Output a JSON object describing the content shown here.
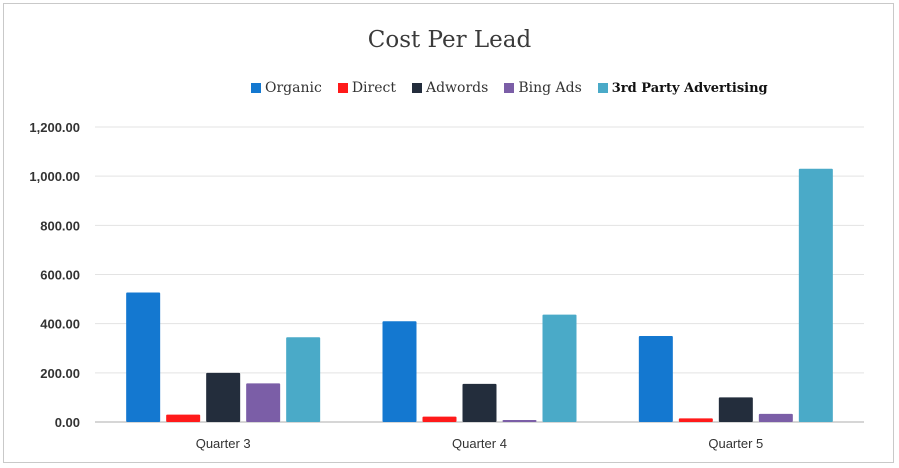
{
  "chart_data": {
    "type": "bar",
    "title": "Cost Per Lead",
    "categories": [
      "Quarter 3",
      "Quarter 4",
      "Quarter 5"
    ],
    "series": [
      {
        "name": "Organic",
        "color": "#1478d0",
        "values": [
          527,
          410,
          350
        ]
      },
      {
        "name": "Direct",
        "color": "#ff1a1a",
        "values": [
          30,
          22,
          15
        ]
      },
      {
        "name": "Adwords",
        "color": "#232d3c",
        "values": [
          200,
          155,
          100
        ]
      },
      {
        "name": "Bing Ads",
        "color": "#7b5ea7",
        "values": [
          157,
          8,
          33
        ]
      },
      {
        "name": "3rd Party Advertising",
        "color": "#4aaac8",
        "values": [
          345,
          437,
          1030
        ]
      }
    ],
    "y_ticks": [
      "0.00",
      "200.00",
      "400.00",
      "600.00",
      "800.00",
      "1,000.00",
      "1,200.00"
    ],
    "ylim": [
      0,
      1200
    ],
    "grid": true,
    "legend_position": "top"
  }
}
